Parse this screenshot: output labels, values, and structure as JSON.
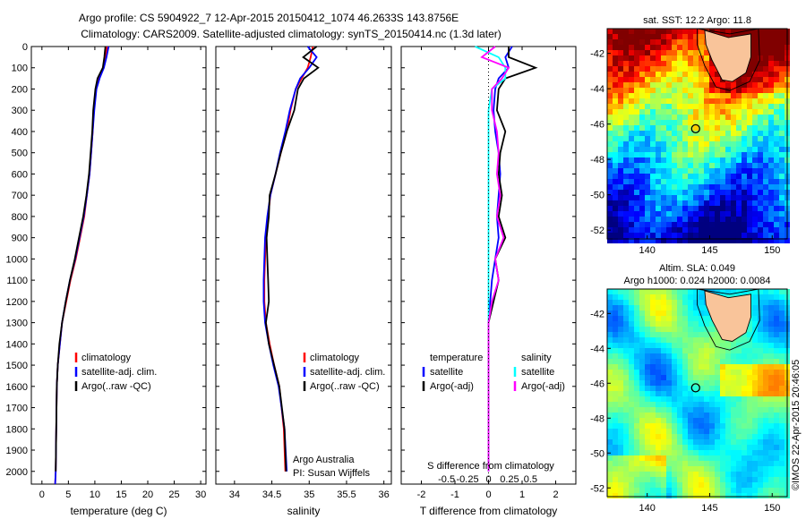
{
  "header": {
    "line1": "Argo profile: CS 5904922_7 12-Apr-2015 20150412_1074 46.2633S 143.8756E",
    "line2": "Climatology: CARS2009. Satellite-adjusted climatology: synTS_20150414.nc (1.3d later)"
  },
  "colors": {
    "climatology": "#ff0000",
    "satellite_adj": "#0000ff",
    "argo": "#000000",
    "temp_satellite": "#0000ff",
    "temp_argo": "#000000",
    "sal_satellite": "#00ffff",
    "sal_argo": "#ff00ff"
  },
  "watermark": "©IMOS 22-Apr-2015 20:46:05",
  "chart_data": [
    {
      "type": "line",
      "id": "temperature",
      "xlabel": "temperature (deg C)",
      "xlim": [
        -2,
        31
      ],
      "ylim": [
        0,
        2060
      ],
      "xticks": [
        0,
        5,
        10,
        15,
        20,
        25,
        30
      ],
      "yticks": [
        0,
        100,
        200,
        300,
        400,
        500,
        600,
        700,
        800,
        900,
        1000,
        1100,
        1200,
        1300,
        1400,
        1500,
        1600,
        1700,
        1800,
        1900,
        2000
      ],
      "legend": [
        "climatology",
        "satellite-adj. clim.",
        "Argo(..raw -QC)"
      ],
      "series": [
        {
          "name": "climatology",
          "color_key": "climatology",
          "x": [
            12.3,
            12.0,
            11.6,
            10.8,
            10.2,
            9.8,
            9.6,
            9.3,
            9.0,
            8.5,
            8.0,
            7.2,
            6.4,
            5.4,
            4.6,
            3.8,
            3.4,
            3.0,
            2.8,
            2.7,
            2.6,
            2.5
          ],
          "y": [
            0,
            50,
            100,
            150,
            200,
            300,
            400,
            500,
            600,
            700,
            800,
            900,
            1000,
            1100,
            1200,
            1300,
            1400,
            1500,
            1600,
            1800,
            2000,
            2060
          ]
        },
        {
          "name": "satellite-adj. clim.",
          "color_key": "satellite_adj",
          "x": [
            12.6,
            12.2,
            11.7,
            10.9,
            10.3,
            9.9,
            9.6,
            9.3,
            9.0,
            8.5,
            7.9,
            7.1,
            6.3,
            5.3,
            4.5,
            3.8,
            3.4,
            3.0,
            2.8,
            2.7,
            2.6,
            2.5
          ],
          "y": [
            0,
            50,
            100,
            150,
            200,
            300,
            400,
            500,
            600,
            700,
            800,
            900,
            1000,
            1100,
            1200,
            1300,
            1400,
            1500,
            1600,
            1800,
            2000,
            2060
          ]
        },
        {
          "name": "Argo(..raw -QC)",
          "color_key": "argo",
          "x": [
            12.0,
            11.8,
            11.5,
            10.5,
            10.1,
            9.7,
            9.5,
            9.2,
            8.9,
            8.4,
            7.8,
            7.0,
            6.2,
            5.3,
            4.5,
            3.8,
            3.3,
            3.0,
            2.8,
            2.7,
            2.6
          ],
          "y": [
            0,
            50,
            100,
            150,
            200,
            300,
            400,
            500,
            600,
            700,
            800,
            900,
            1000,
            1100,
            1200,
            1300,
            1400,
            1500,
            1600,
            1800,
            2000
          ]
        }
      ]
    },
    {
      "type": "line",
      "id": "salinity",
      "xlabel": "salinity",
      "xlim": [
        33.75,
        36.1
      ],
      "ylim": [
        0,
        2060
      ],
      "xticks": [
        34,
        34.5,
        35,
        35.5,
        36
      ],
      "legend": [
        "climatology",
        "satellite-adj. clim.",
        "Argo(..raw -QC)"
      ],
      "annotation": [
        "Argo Australia",
        "PI: Susan Wijffels"
      ],
      "series": [
        {
          "name": "climatology",
          "color_key": "climatology",
          "x": [
            35.05,
            35.02,
            34.98,
            34.9,
            34.82,
            34.75,
            34.7,
            34.62,
            34.55,
            34.48,
            34.45,
            34.42,
            34.41,
            34.4,
            34.4,
            34.42,
            34.47,
            34.53,
            34.6,
            34.66,
            34.68
          ],
          "y": [
            0,
            50,
            100,
            150,
            200,
            300,
            400,
            500,
            600,
            700,
            800,
            900,
            1000,
            1100,
            1200,
            1300,
            1400,
            1500,
            1600,
            1800,
            2000
          ]
        },
        {
          "name": "satellite-adj. clim.",
          "color_key": "satellite_adj",
          "x": [
            34.98,
            35.1,
            35.0,
            34.88,
            34.82,
            34.74,
            34.68,
            34.61,
            34.55,
            34.48,
            34.44,
            34.41,
            34.4,
            34.39,
            34.39,
            34.41,
            34.46,
            34.52,
            34.59,
            34.67,
            34.7
          ],
          "y": [
            0,
            50,
            100,
            150,
            200,
            300,
            400,
            500,
            600,
            700,
            800,
            900,
            1000,
            1100,
            1200,
            1300,
            1400,
            1500,
            1600,
            1800,
            2000
          ]
        },
        {
          "name": "Argo(..raw -QC)",
          "color_key": "argo",
          "x": [
            35.1,
            34.92,
            35.12,
            34.93,
            34.85,
            34.8,
            34.7,
            34.62,
            34.55,
            34.47,
            34.46,
            34.43,
            34.44,
            34.45,
            34.46,
            34.42,
            34.46,
            34.53,
            34.6,
            34.67,
            34.69
          ],
          "y": [
            0,
            50,
            100,
            150,
            200,
            300,
            400,
            500,
            600,
            700,
            800,
            900,
            1000,
            1100,
            1200,
            1300,
            1400,
            1500,
            1600,
            1800,
            2000
          ]
        }
      ]
    },
    {
      "type": "line",
      "id": "difference",
      "xlabel": "T difference from climatology",
      "xlabel_top": "S difference from climatology",
      "xlim": [
        -2.6,
        2.6
      ],
      "ylim": [
        0,
        2060
      ],
      "xticks": [
        -2,
        -1,
        0,
        1,
        2
      ],
      "xticklabels": [
        "-2",
        "-1",
        "0",
        "1",
        "2"
      ],
      "sticks": [
        -1.25,
        -0.625,
        0,
        0.625,
        1.25
      ],
      "sticklabels": [
        "-0.5",
        "-0.25",
        "0",
        "0.25",
        "0.5"
      ],
      "legend_left_title": "temperature",
      "legend_right_title": "salinity",
      "legend_left": [
        "satellite",
        "Argo(-adj)"
      ],
      "legend_right": [
        "satellite",
        "Argo(-adj)"
      ],
      "series": [
        {
          "name": "T satellite",
          "color_key": "temp_satellite",
          "x": [
            0.7,
            0.5,
            0.6,
            0.3,
            0.2,
            0.15,
            0.2,
            0.3,
            0.35,
            0.3,
            0.25,
            0.3,
            0.2,
            0.1,
            0.05,
            0.0,
            0.0,
            0.0,
            0.0,
            0.0,
            0.0
          ],
          "y": [
            0,
            50,
            100,
            150,
            200,
            300,
            400,
            500,
            600,
            700,
            800,
            900,
            1000,
            1100,
            1200,
            1300,
            1400,
            1500,
            1600,
            1800,
            2000
          ]
        },
        {
          "name": "T Argo",
          "color_key": "temp_argo",
          "x": [
            0.6,
            0.6,
            1.4,
            0.5,
            0.3,
            0.25,
            0.5,
            0.35,
            0.3,
            0.4,
            0.3,
            0.5,
            0.2,
            0.3,
            0.15,
            0.0,
            0.0,
            0.0,
            0.0,
            0.0,
            0.0
          ],
          "y": [
            0,
            50,
            100,
            150,
            200,
            300,
            400,
            500,
            600,
            700,
            800,
            900,
            1000,
            1100,
            1200,
            1300,
            1400,
            1500,
            1600,
            1800,
            2000
          ]
        },
        {
          "name": "S satellite",
          "color_key": "sal_satellite",
          "x": [
            -0.4,
            0.3,
            0.5,
            0.5,
            0.1,
            0.0,
            0.0,
            0.0,
            0.0,
            0.0,
            0.0,
            0.0,
            0.0,
            0.0,
            0.0,
            0.0,
            0.0,
            0.0,
            0.0,
            0.0,
            0.0
          ],
          "y": [
            0,
            50,
            100,
            150,
            200,
            300,
            400,
            500,
            600,
            700,
            800,
            900,
            1000,
            1100,
            1200,
            1300,
            1400,
            1500,
            1600,
            1800,
            2000
          ]
        },
        {
          "name": "S Argo",
          "color_key": "sal_argo",
          "x": [
            0.2,
            -0.2,
            0.6,
            0.4,
            0.1,
            0.1,
            0.25,
            0.3,
            0.25,
            0.35,
            0.25,
            0.45,
            0.2,
            0.3,
            0.1,
            0.0,
            0.0,
            0.0,
            0.0,
            0.0,
            0.0
          ],
          "y": [
            0,
            50,
            100,
            150,
            200,
            300,
            400,
            500,
            600,
            700,
            800,
            900,
            1000,
            1100,
            1200,
            1300,
            1400,
            1500,
            1600,
            1800,
            2000
          ]
        }
      ]
    },
    {
      "type": "heatmap",
      "id": "sst-map",
      "title": "sat. SST: 12.2 Argo: 11.8",
      "xlim": [
        136.8,
        151.2
      ],
      "ylim": [
        -52.5,
        -40.6
      ],
      "xticks": [
        140,
        145,
        150
      ],
      "yticks": [
        -42,
        -44,
        -46,
        -48,
        -50,
        -52
      ],
      "argo_position": [
        143.8756,
        -46.2633
      ]
    },
    {
      "type": "heatmap",
      "id": "sla-map",
      "title": [
        "Altim. SLA: 0.049",
        "Argo h1000: 0.024 h2000: 0.0084"
      ],
      "xlim": [
        136.8,
        151.2
      ],
      "ylim": [
        -52.5,
        -40.6
      ],
      "xticks": [
        140,
        145,
        150
      ],
      "yticks": [
        -42,
        -44,
        -46,
        -48,
        -50,
        -52
      ],
      "argo_position": [
        143.8756,
        -46.2633
      ]
    }
  ]
}
